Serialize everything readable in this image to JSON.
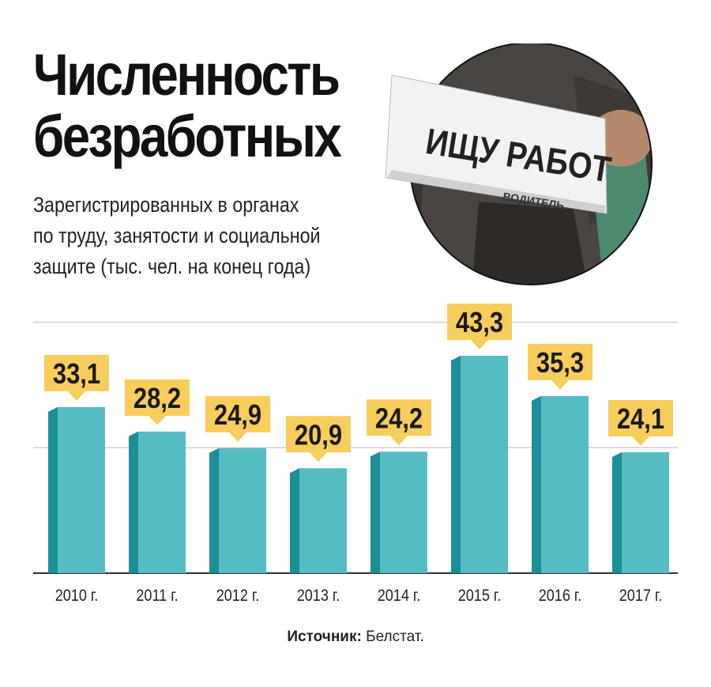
{
  "header": {
    "title_line1": "Численность",
    "title_line2": "безработных",
    "subtitle_line1": "Зарегистрированных в органах",
    "subtitle_line2": "по труду, занятости и социальной",
    "subtitle_line3": "защите (тыс. чел. на конец года)"
  },
  "photo": {
    "sign_text": "ИЩУ РАБОТ",
    "newspaper_text": "ВОДИТЕЛЬ"
  },
  "source": {
    "label": "Источник:",
    "value": "Белстат."
  },
  "colors": {
    "bar_front": "#55bcc4",
    "bar_side": "#1a8f98",
    "label_bg": "#f9cd5c",
    "gridline": "#c8c8c8",
    "axis": "#333333"
  },
  "chart_data": {
    "type": "bar",
    "categories": [
      "2010 г.",
      "2011 г.",
      "2012 г.",
      "2013 г.",
      "2014 г.",
      "2015 г.",
      "2016 г.",
      "2017 г."
    ],
    "values": [
      33.1,
      28.2,
      24.9,
      20.9,
      24.2,
      43.3,
      35.3,
      24.1
    ],
    "value_labels": [
      "33,1",
      "28,2",
      "24,9",
      "20,9",
      "24,2",
      "43,3",
      "35,3",
      "24,1"
    ],
    "ylim": [
      0,
      50
    ],
    "grid": true,
    "gridlines_at": [
      25,
      50
    ]
  }
}
